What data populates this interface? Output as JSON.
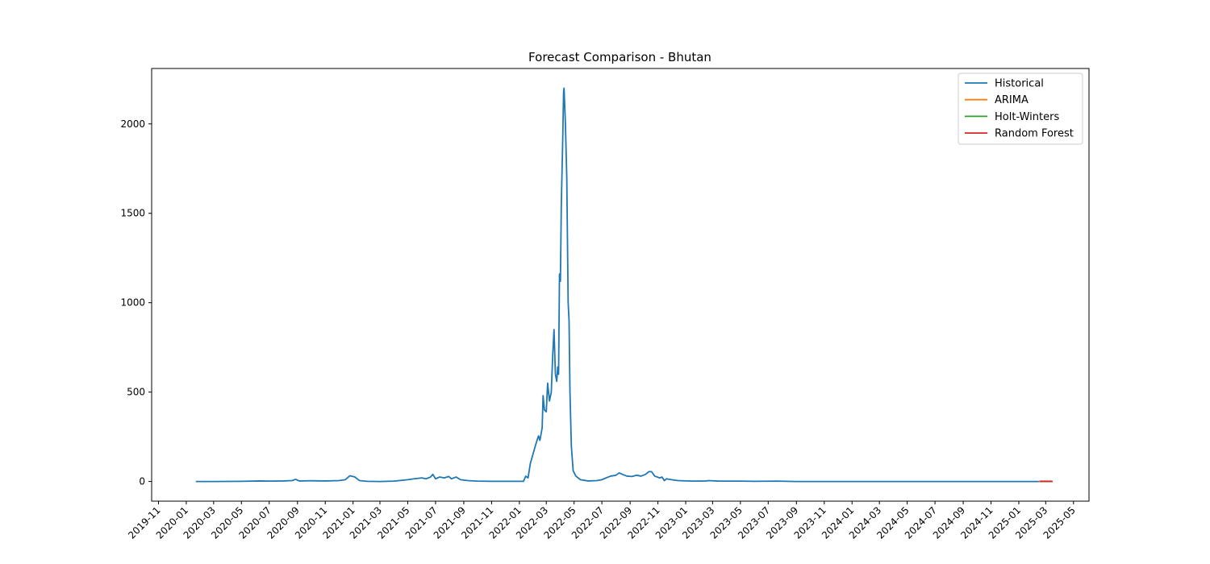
{
  "chart_data": {
    "type": "line",
    "title": "Forecast Comparison - Bhutan",
    "xlabel": "",
    "ylabel": "",
    "xlim": [
      "2019-10-17",
      "2025-06-04"
    ],
    "ylim": [
      -110,
      2310
    ],
    "grid": false,
    "legend": "top-right",
    "x_ticks": [
      "2019-11",
      "2020-01",
      "2020-03",
      "2020-05",
      "2020-07",
      "2020-09",
      "2020-11",
      "2021-01",
      "2021-03",
      "2021-05",
      "2021-07",
      "2021-09",
      "2021-11",
      "2022-01",
      "2022-03",
      "2022-05",
      "2022-07",
      "2022-09",
      "2022-11",
      "2023-01",
      "2023-03",
      "2023-05",
      "2023-07",
      "2023-09",
      "2023-11",
      "2024-01",
      "2024-03",
      "2024-05",
      "2024-07",
      "2024-09",
      "2024-11",
      "2025-01",
      "2025-03",
      "2025-05"
    ],
    "y_ticks": [
      0,
      500,
      1000,
      1500,
      2000
    ],
    "series": [
      {
        "name": "Historical",
        "color": "#1f77b4",
        "points": [
          [
            "2020-01-22",
            0
          ],
          [
            "2020-03-01",
            0
          ],
          [
            "2020-05-01",
            1
          ],
          [
            "2020-06-10",
            3
          ],
          [
            "2020-07-01",
            2
          ],
          [
            "2020-08-01",
            3
          ],
          [
            "2020-08-20",
            5
          ],
          [
            "2020-08-28",
            12
          ],
          [
            "2020-09-05",
            3
          ],
          [
            "2020-10-01",
            4
          ],
          [
            "2020-11-01",
            3
          ],
          [
            "2020-12-01",
            5
          ],
          [
            "2020-12-15",
            10
          ],
          [
            "2020-12-25",
            32
          ],
          [
            "2021-01-05",
            25
          ],
          [
            "2021-01-15",
            5
          ],
          [
            "2021-02-01",
            1
          ],
          [
            "2021-03-01",
            0
          ],
          [
            "2021-04-01",
            2
          ],
          [
            "2021-05-01",
            10
          ],
          [
            "2021-05-15",
            15
          ],
          [
            "2021-06-01",
            20
          ],
          [
            "2021-06-10",
            15
          ],
          [
            "2021-06-20",
            25
          ],
          [
            "2021-06-25",
            40
          ],
          [
            "2021-07-01",
            15
          ],
          [
            "2021-07-10",
            25
          ],
          [
            "2021-07-20",
            20
          ],
          [
            "2021-07-30",
            28
          ],
          [
            "2021-08-05",
            15
          ],
          [
            "2021-08-15",
            25
          ],
          [
            "2021-08-25",
            10
          ],
          [
            "2021-09-10",
            5
          ],
          [
            "2021-10-01",
            2
          ],
          [
            "2021-11-01",
            1
          ],
          [
            "2021-12-01",
            1
          ],
          [
            "2022-01-01",
            1
          ],
          [
            "2022-01-10",
            1
          ],
          [
            "2022-01-15",
            30
          ],
          [
            "2022-01-20",
            20
          ],
          [
            "2022-01-25",
            100
          ],
          [
            "2022-02-05",
            200
          ],
          [
            "2022-02-10",
            240
          ],
          [
            "2022-02-12",
            255
          ],
          [
            "2022-02-15",
            230
          ],
          [
            "2022-02-20",
            300
          ],
          [
            "2022-02-22",
            480
          ],
          [
            "2022-02-25",
            400
          ],
          [
            "2022-03-01",
            390
          ],
          [
            "2022-03-04",
            550
          ],
          [
            "2022-03-08",
            450
          ],
          [
            "2022-03-12",
            500
          ],
          [
            "2022-03-15",
            700
          ],
          [
            "2022-03-18",
            850
          ],
          [
            "2022-03-21",
            600
          ],
          [
            "2022-03-24",
            560
          ],
          [
            "2022-03-26",
            640
          ],
          [
            "2022-03-28",
            600
          ],
          [
            "2022-03-30",
            1160
          ],
          [
            "2022-04-01",
            1120
          ],
          [
            "2022-04-03",
            1550
          ],
          [
            "2022-04-06",
            1900
          ],
          [
            "2022-04-08",
            2180
          ],
          [
            "2022-04-09",
            2200
          ],
          [
            "2022-04-12",
            2000
          ],
          [
            "2022-04-15",
            1700
          ],
          [
            "2022-04-18",
            1000
          ],
          [
            "2022-04-20",
            900
          ],
          [
            "2022-04-22",
            500
          ],
          [
            "2022-04-25",
            200
          ],
          [
            "2022-04-29",
            60
          ],
          [
            "2022-05-05",
            30
          ],
          [
            "2022-05-15",
            10
          ],
          [
            "2022-06-01",
            3
          ],
          [
            "2022-06-20",
            5
          ],
          [
            "2022-07-01",
            10
          ],
          [
            "2022-07-10",
            20
          ],
          [
            "2022-07-20",
            30
          ],
          [
            "2022-08-01",
            35
          ],
          [
            "2022-08-08",
            48
          ],
          [
            "2022-08-15",
            40
          ],
          [
            "2022-08-25",
            30
          ],
          [
            "2022-09-05",
            28
          ],
          [
            "2022-09-15",
            35
          ],
          [
            "2022-09-25",
            30
          ],
          [
            "2022-10-05",
            40
          ],
          [
            "2022-10-12",
            55
          ],
          [
            "2022-10-18",
            55
          ],
          [
            "2022-10-25",
            30
          ],
          [
            "2022-11-05",
            20
          ],
          [
            "2022-11-10",
            25
          ],
          [
            "2022-11-15",
            5
          ],
          [
            "2022-11-20",
            15
          ],
          [
            "2022-12-01",
            10
          ],
          [
            "2022-12-15",
            5
          ],
          [
            "2023-01-15",
            2
          ],
          [
            "2023-02-15",
            3
          ],
          [
            "2023-02-20",
            5
          ],
          [
            "2023-03-15",
            2
          ],
          [
            "2023-05-01",
            2
          ],
          [
            "2023-06-01",
            1
          ],
          [
            "2023-07-20",
            2
          ],
          [
            "2023-09-01",
            0
          ],
          [
            "2024-06-01",
            0
          ],
          [
            "2025-01-01",
            0
          ],
          [
            "2025-02-14",
            0
          ]
        ]
      },
      {
        "name": "ARIMA",
        "color": "#ff7f0e",
        "points": [
          [
            "2025-02-15",
            0
          ],
          [
            "2025-03-16",
            0
          ]
        ]
      },
      {
        "name": "Holt-Winters",
        "color": "#2ca02c",
        "points": [
          [
            "2025-02-15",
            0
          ],
          [
            "2025-03-16",
            0
          ]
        ]
      },
      {
        "name": "Random Forest",
        "color": "#d62728",
        "points": [
          [
            "2025-02-15",
            2
          ],
          [
            "2025-02-18",
            0
          ],
          [
            "2025-02-21",
            2
          ],
          [
            "2025-02-24",
            0
          ],
          [
            "2025-02-27",
            2
          ],
          [
            "2025-03-02",
            0
          ],
          [
            "2025-03-05",
            2
          ],
          [
            "2025-03-08",
            0
          ],
          [
            "2025-03-11",
            2
          ],
          [
            "2025-03-16",
            0
          ]
        ]
      }
    ]
  }
}
